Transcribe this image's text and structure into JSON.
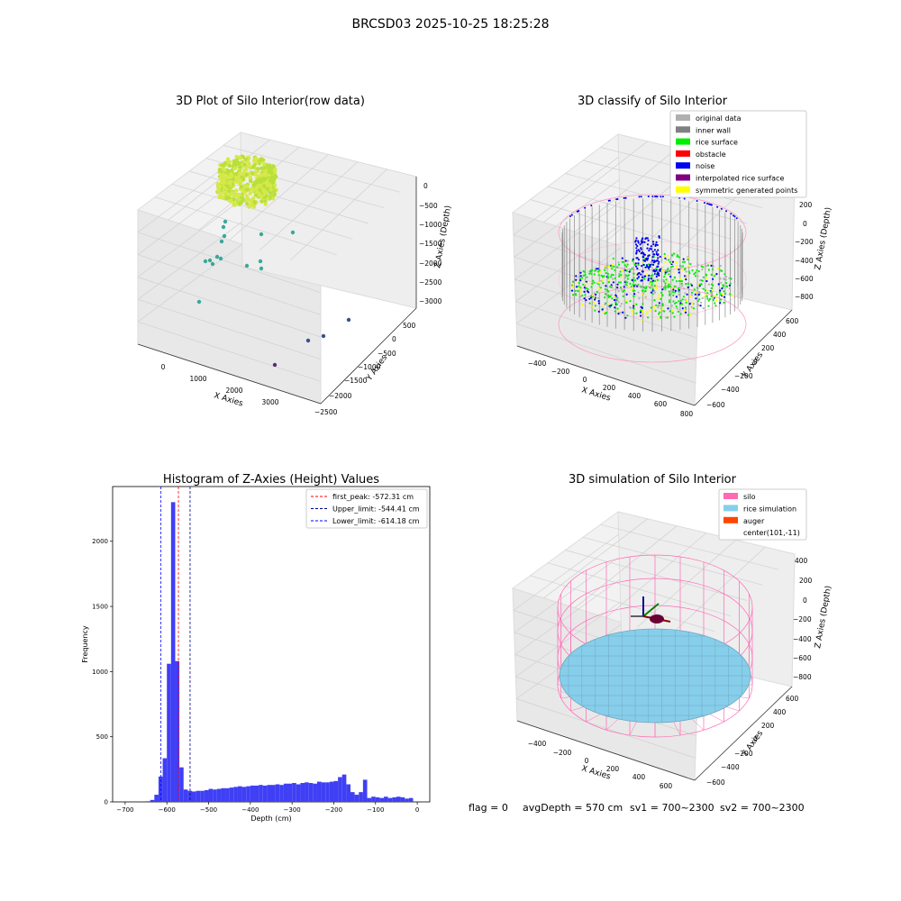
{
  "suptitle": "BRCSD03 2025-10-25 18:25:28",
  "footer": {
    "flag": "flag = 0",
    "avg_depth": "avgDepth = 570 cm",
    "sv1": "sv1 = 700~2300",
    "sv2": "sv2 = 700~2300"
  },
  "chart_data": [
    {
      "type": "scatter",
      "subtype": "3d",
      "title": "3D Plot of Silo Interior(row data)",
      "xlabel": "X Axies",
      "ylabel": "Y Axies",
      "zlabel": "Z Axies (Depth)",
      "x_ticks": [
        "0",
        "1000",
        "2000",
        "3000"
      ],
      "y_ticks": [
        "500",
        "0",
        "−500",
        "−1000",
        "−1500",
        "−2000",
        "−2500"
      ],
      "z_ticks": [
        "0",
        "−500",
        "−1000",
        "−1500",
        "−2000",
        "−2500",
        "−3000"
      ],
      "colors": {
        "cluster": "#b8e03a",
        "mid": "#3aa89a",
        "deep": "#3b4f8c",
        "deepest": "#5a2a7a"
      }
    },
    {
      "type": "scatter",
      "subtype": "3d",
      "title": "3D classify of Silo Interior",
      "xlabel": "X Axies",
      "ylabel": "Y Axies",
      "zlabel": "Z Axies (Depth)",
      "x_ticks": [
        "−400",
        "−200",
        "0",
        "200",
        "400",
        "600",
        "800"
      ],
      "y_ticks": [
        "600",
        "400",
        "200",
        "0",
        "−200",
        "−400",
        "−600"
      ],
      "z_ticks": [
        "200",
        "0",
        "−200",
        "−400",
        "−600",
        "−800"
      ],
      "legend": [
        {
          "label": "original data",
          "color": "#b0b0b0"
        },
        {
          "label": "inner wall",
          "color": "#808080"
        },
        {
          "label": "rice surface",
          "color": "#00ee00"
        },
        {
          "label": "obstacle",
          "color": "#ff0000"
        },
        {
          "label": "noise",
          "color": "#0000ee"
        },
        {
          "label": "interpolated rice surface",
          "color": "#800080"
        },
        {
          "label": "symmetric generated points",
          "color": "#ffff00"
        }
      ],
      "legend_position": "top-right"
    },
    {
      "type": "bar",
      "subtype": "histogram",
      "title": "Histogram of Z-Axies (Height) Values",
      "xlabel": "Depth (cm)",
      "ylabel": "Frequency",
      "xlim": [
        -730,
        30
      ],
      "ylim": [
        0,
        2420
      ],
      "x_ticks": [
        -700,
        -600,
        -500,
        -400,
        -300,
        -200,
        -100,
        0
      ],
      "y_ticks": [
        0,
        500,
        1000,
        1500,
        2000
      ],
      "bin_width": 10,
      "bins": [
        [
          -650,
          5
        ],
        [
          -640,
          15
        ],
        [
          -630,
          55
        ],
        [
          -620,
          195
        ],
        [
          -610,
          335
        ],
        [
          -600,
          1060
        ],
        [
          -590,
          2300
        ],
        [
          -580,
          1080
        ],
        [
          -570,
          265
        ],
        [
          -560,
          95
        ],
        [
          -550,
          85
        ],
        [
          -540,
          80
        ],
        [
          -530,
          85
        ],
        [
          -520,
          85
        ],
        [
          -510,
          90
        ],
        [
          -500,
          100
        ],
        [
          -490,
          95
        ],
        [
          -480,
          100
        ],
        [
          -470,
          105
        ],
        [
          -460,
          105
        ],
        [
          -450,
          110
        ],
        [
          -440,
          115
        ],
        [
          -430,
          120
        ],
        [
          -420,
          115
        ],
        [
          -410,
          120
        ],
        [
          -400,
          125
        ],
        [
          -390,
          125
        ],
        [
          -380,
          130
        ],
        [
          -370,
          125
        ],
        [
          -360,
          130
        ],
        [
          -350,
          130
        ],
        [
          -340,
          135
        ],
        [
          -330,
          130
        ],
        [
          -320,
          140
        ],
        [
          -310,
          140
        ],
        [
          -300,
          145
        ],
        [
          -290,
          135
        ],
        [
          -280,
          145
        ],
        [
          -270,
          150
        ],
        [
          -260,
          145
        ],
        [
          -250,
          140
        ],
        [
          -240,
          155
        ],
        [
          -230,
          150
        ],
        [
          -220,
          150
        ],
        [
          -210,
          155
        ],
        [
          -200,
          160
        ],
        [
          -190,
          190
        ],
        [
          -180,
          210
        ],
        [
          -170,
          135
        ],
        [
          -160,
          75
        ],
        [
          -150,
          55
        ],
        [
          -140,
          75
        ],
        [
          -130,
          170
        ],
        [
          -120,
          30
        ],
        [
          -110,
          40
        ],
        [
          -100,
          35
        ],
        [
          -90,
          30
        ],
        [
          -80,
          40
        ],
        [
          -70,
          30
        ],
        [
          -60,
          35
        ],
        [
          -50,
          40
        ],
        [
          -40,
          35
        ],
        [
          -30,
          25
        ],
        [
          -20,
          30
        ]
      ],
      "bar_color": "#3f3ff5",
      "vlines": [
        {
          "label": "first_peak: -572.31 cm",
          "x": -572.31,
          "color": "#ff0000"
        },
        {
          "label": "Upper_limit: -544.41 cm",
          "x": -544.41,
          "color": "#00008b"
        },
        {
          "label": "Lower_limit: -614.18 cm",
          "x": -614.18,
          "color": "#0000ff"
        }
      ],
      "legend_position": "top-right"
    },
    {
      "type": "scatter",
      "subtype": "3d",
      "title": "3D simulation of Silo Interior",
      "xlabel": "X Axies",
      "ylabel": "Y Axies",
      "zlabel": "Z Axies (Depth)",
      "x_ticks": [
        "−400",
        "−200",
        "0",
        "200",
        "400",
        "600"
      ],
      "y_ticks": [
        "600",
        "400",
        "200",
        "0",
        "−200",
        "−400",
        "−600"
      ],
      "z_ticks": [
        "400",
        "200",
        "0",
        "−200",
        "−400",
        "−600",
        "−800"
      ],
      "legend": [
        {
          "label": "silo",
          "color": "#ff69b4"
        },
        {
          "label": "rice simulation",
          "color": "#87ceeb"
        },
        {
          "label": "auger",
          "color": "#ff4500"
        },
        {
          "label": "center(101,-11)",
          "color": ""
        }
      ],
      "legend_position": "top-right"
    }
  ]
}
